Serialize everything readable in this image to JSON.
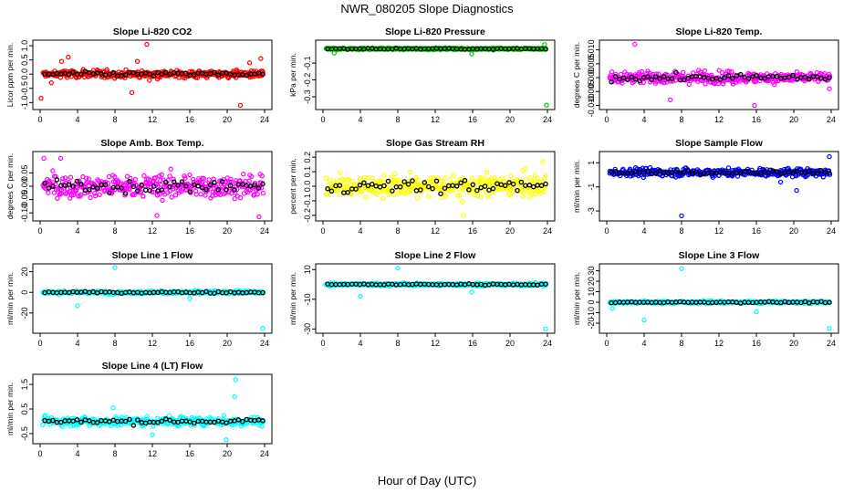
{
  "figure": {
    "title": "NWR_080205  Slope Diagnostics",
    "xlabel": "Hour of Day (UTC)"
  },
  "chart_data": [
    {
      "type": "scatter",
      "title": "Slope Li-820 CO2",
      "ylabel": "Licor ppm per min.",
      "color": "#ff0000",
      "xlim": [
        0,
        24
      ],
      "ylim": [
        -1.15,
        1.1
      ],
      "xticks": [
        0,
        4,
        8,
        12,
        16,
        20,
        24
      ],
      "yticks": [
        -1.0,
        -0.5,
        0.0,
        0.5,
        1.0
      ],
      "ytick_labels": [
        "-1.0",
        "-0.5",
        "0.0",
        "0.5",
        "1.0"
      ],
      "spread": 0.15,
      "outliers": [
        [
          0.1,
          -0.85
        ],
        [
          1.2,
          -0.3
        ],
        [
          2.3,
          0.45
        ],
        [
          3.0,
          0.6
        ],
        [
          9.8,
          -0.65
        ],
        [
          10.4,
          0.45
        ],
        [
          11.4,
          1.05
        ],
        [
          21.0,
          0.15
        ],
        [
          21.4,
          -1.1
        ],
        [
          22.4,
          0.4
        ],
        [
          23.6,
          0.55
        ]
      ]
    },
    {
      "type": "scatter",
      "title": "Slope Li-820 Pressure",
      "ylabel": "kPa per min.",
      "color": "#00cc00",
      "xlim": [
        0,
        24
      ],
      "ylim": [
        -0.36,
        0.02
      ],
      "xticks": [
        0,
        4,
        8,
        12,
        16,
        20,
        24
      ],
      "yticks": [
        -0.1,
        -0.2,
        -0.3
      ],
      "ytick_labels": [
        "-0.1",
        "-0.2",
        "-0.3"
      ],
      "spread": 0.006,
      "center": -0.015,
      "outliers": [
        [
          1.2,
          -0.04
        ],
        [
          15.9,
          -0.045
        ],
        [
          23.9,
          -0.35
        ],
        [
          23.7,
          0.01
        ]
      ]
    },
    {
      "type": "scatter",
      "title": "Slope Li-820 Temp.",
      "ylabel": "degrees C per min.",
      "color": "#ff00ff",
      "xlim": [
        0,
        24
      ],
      "ylim": [
        -0.0105,
        0.0125
      ],
      "xticks": [
        0,
        4,
        8,
        12,
        16,
        20,
        24
      ],
      "yticks": [
        -0.01,
        -0.005,
        0.0,
        0.005,
        0.01
      ],
      "ytick_labels": [
        "-0.010",
        "-0.005",
        "0.000",
        "0.005",
        "0.010"
      ],
      "spread": 0.0022,
      "outliers": [
        [
          3.0,
          0.012
        ],
        [
          15.8,
          -0.01
        ],
        [
          6.8,
          -0.008
        ],
        [
          23.8,
          -0.004
        ]
      ]
    },
    {
      "type": "scatter",
      "title": "Slope Amb. Box Temp.",
      "ylabel": "degrees C per min.",
      "color": "#ff00ff",
      "xlim": [
        0,
        24
      ],
      "ylim": [
        -0.12,
        0.12
      ],
      "xticks": [
        0,
        4,
        8,
        12,
        16,
        20,
        24
      ],
      "yticks": [
        -0.1,
        -0.05,
        0.0,
        0.05
      ],
      "ytick_labels": [
        "-0.10",
        "-0.05",
        "0.00",
        "0.05"
      ],
      "spread": 0.045,
      "outliers": [
        [
          0.4,
          0.105
        ],
        [
          2.2,
          0.105
        ],
        [
          12.5,
          -0.11
        ],
        [
          23.4,
          -0.115
        ]
      ]
    },
    {
      "type": "scatter",
      "title": "Slope Gas Stream RH",
      "ylabel": "percent per min.",
      "color": "#ffff00",
      "xlim": [
        0,
        24
      ],
      "ylim": [
        -0.22,
        0.22
      ],
      "xticks": [
        0,
        4,
        8,
        12,
        16,
        20,
        24
      ],
      "yticks": [
        -0.2,
        -0.1,
        0.0,
        0.1,
        0.2
      ],
      "ytick_labels": [
        "-0.2",
        "-0.1",
        "0.0",
        "0.1",
        "0.2"
      ],
      "spread": 0.08,
      "outliers": [
        [
          15.0,
          -0.2
        ],
        [
          23.5,
          0.17
        ]
      ]
    },
    {
      "type": "scatter",
      "title": "Slope Sample Flow",
      "ylabel": "ml/min per min.",
      "color": "#0000ff",
      "xlim": [
        0,
        24
      ],
      "ylim": [
        -3.6,
        1.7
      ],
      "xticks": [
        0,
        4,
        8,
        12,
        16,
        20,
        24
      ],
      "yticks": [
        -3,
        -1,
        1
      ],
      "ytick_labels": [
        "-3",
        "-1",
        "1"
      ],
      "spread": 0.35,
      "center": 0.2,
      "outliers": [
        [
          8.0,
          -3.4
        ],
        [
          20.3,
          -1.3
        ],
        [
          23.8,
          1.5
        ],
        [
          18.6,
          -0.6
        ]
      ]
    },
    {
      "type": "scatter",
      "title": "Slope Line 1 Flow",
      "ylabel": "ml/min per min.",
      "color": "#00ffff",
      "xlim": [
        0,
        24
      ],
      "ylim": [
        -37,
        25
      ],
      "xticks": [
        0,
        4,
        8,
        12,
        16,
        20,
        24
      ],
      "yticks": [
        -20,
        0,
        20
      ],
      "ytick_labels": [
        "-20",
        "0",
        "20"
      ],
      "spread": 1.5,
      "outliers": [
        [
          8.0,
          24
        ],
        [
          4.0,
          -13
        ],
        [
          23.8,
          -35
        ],
        [
          16.0,
          -6
        ]
      ]
    },
    {
      "type": "scatter",
      "title": "Slope Line 2 Flow",
      "ylabel": "ml/min per min.",
      "color": "#00ffff",
      "xlim": [
        0,
        24
      ],
      "ylim": [
        -31,
        12
      ],
      "xticks": [
        0,
        4,
        8,
        12,
        16,
        20,
        24
      ],
      "yticks": [
        -30,
        -10,
        10
      ],
      "ytick_labels": [
        "-30",
        "-10",
        "10"
      ],
      "spread": 1.0,
      "outliers": [
        [
          8.0,
          11
        ],
        [
          4.0,
          -8
        ],
        [
          15.9,
          -5
        ],
        [
          23.8,
          -30
        ]
      ]
    },
    {
      "type": "scatter",
      "title": "Slope Line 3 Flow",
      "ylabel": "ml/min per min.",
      "color": "#00ffff",
      "xlim": [
        0,
        24
      ],
      "ylim": [
        -27,
        34
      ],
      "xticks": [
        0,
        4,
        8,
        12,
        16,
        20,
        24
      ],
      "yticks": [
        -20,
        -10,
        0,
        10,
        20,
        30
      ],
      "ytick_labels": [
        "-20",
        "-10",
        "0",
        "10",
        "20",
        "30"
      ],
      "spread": 1.2,
      "outliers": [
        [
          8.0,
          32
        ],
        [
          4.0,
          -17
        ],
        [
          0.6,
          -6
        ],
        [
          16.0,
          -9
        ],
        [
          23.8,
          -25
        ]
      ]
    },
    {
      "type": "scatter",
      "title": "Slope Line 4 (LT) Flow",
      "ylabel": "ml/min per min.",
      "color": "#00ffff",
      "xlim": [
        0,
        24
      ],
      "ylim": [
        -0.8,
        1.8
      ],
      "xticks": [
        0,
        4,
        8,
        12,
        16,
        20,
        24
      ],
      "yticks": [
        -0.5,
        0.5,
        1.5
      ],
      "ytick_labels": [
        "-0.5",
        "0.5",
        "1.5"
      ],
      "spread": 0.2,
      "outliers": [
        [
          20.9,
          1.7
        ],
        [
          20.8,
          1.0
        ],
        [
          19.9,
          -0.75
        ],
        [
          12.0,
          -0.55
        ],
        [
          7.8,
          0.55
        ]
      ]
    }
  ]
}
